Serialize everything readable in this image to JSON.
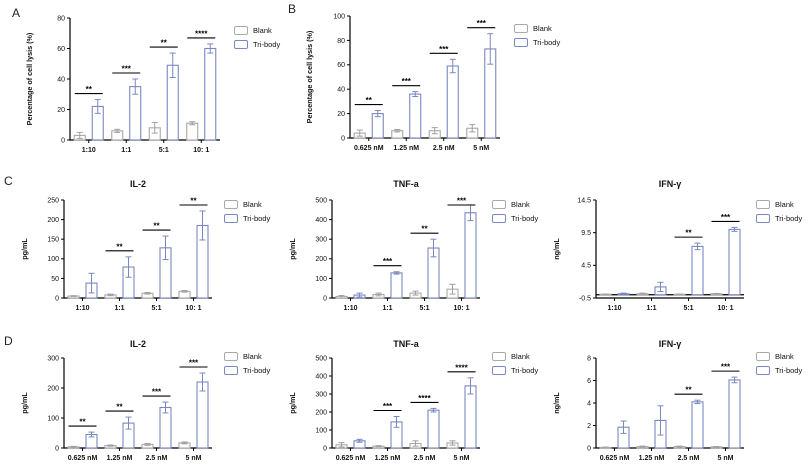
{
  "figure": {
    "panels": [
      {
        "letter": "A"
      },
      {
        "letter": "B"
      },
      {
        "letter": "C"
      },
      {
        "letter": "D"
      }
    ]
  },
  "legend": {
    "items": [
      "Blank",
      "Tri-body"
    ]
  },
  "colors": {
    "blank_border": "#a9aaae",
    "blank_fill": "#fdfdfc",
    "blank_error": "#9fa0a4",
    "tribody_border": "#7a88c0",
    "tribody_fill": "#ffffff",
    "axis": "#000000",
    "significance": "#000000"
  },
  "chart_data": [
    {
      "type": "bar",
      "panel": "A",
      "title": "",
      "ylabel": "Percentage of cell lysis (%)",
      "categories": [
        "1:10",
        "1:1",
        "5:1",
        "10: 1"
      ],
      "series": [
        {
          "name": "Blank",
          "values": [
            3,
            6,
            8,
            11
          ],
          "errors": [
            2,
            1,
            3.5,
            1
          ]
        },
        {
          "name": "Tri-body",
          "values": [
            22,
            35,
            49,
            60
          ],
          "errors": [
            4.5,
            5,
            8,
            3
          ]
        }
      ],
      "significance": [
        "**",
        "***",
        "**",
        "****"
      ],
      "ylim": [
        0,
        80
      ],
      "yticks": [
        0,
        20,
        40,
        60,
        80
      ]
    },
    {
      "type": "bar",
      "panel": "B",
      "title": "",
      "ylabel": "Percentage of cell lysis (%)",
      "categories": [
        "0.625 nM",
        "1.25 nM",
        "2.5 nM",
        "5 nM"
      ],
      "series": [
        {
          "name": "Blank",
          "values": [
            4,
            6,
            6,
            8
          ],
          "errors": [
            2.5,
            1,
            2.5,
            3
          ]
        },
        {
          "name": "Tri-body",
          "values": [
            20,
            36,
            59,
            73
          ],
          "errors": [
            2.5,
            2,
            5.5,
            12.5
          ]
        }
      ],
      "significance": [
        "**",
        "***",
        "***",
        "***"
      ],
      "ylim": [
        0,
        100
      ],
      "yticks": [
        0,
        20,
        40,
        60,
        80,
        100
      ]
    },
    {
      "type": "bar",
      "panel": "C",
      "title": "IL-2",
      "ylabel": "pg/mL",
      "categories": [
        "1:10",
        "1:1",
        "5:1",
        "10: 1"
      ],
      "series": [
        {
          "name": "Blank",
          "values": [
            5,
            8,
            12,
            17
          ],
          "errors": [
            1,
            2,
            2,
            2
          ]
        },
        {
          "name": "Tri-body",
          "values": [
            38,
            79,
            128,
            185
          ],
          "errors": [
            25,
            26,
            30,
            37
          ]
        }
      ],
      "significance": [
        null,
        "**",
        "**",
        "**"
      ],
      "ylim": [
        0,
        250
      ],
      "yticks": [
        0,
        50,
        100,
        150,
        200,
        250
      ]
    },
    {
      "type": "bar",
      "panel": "C",
      "title": "TNF-a",
      "ylabel": "pg/mL",
      "categories": [
        "1:10",
        "1:1",
        "5:1",
        "10: 1"
      ],
      "series": [
        {
          "name": "Blank",
          "values": [
            8,
            18,
            25,
            45
          ],
          "errors": [
            5,
            7,
            10,
            25
          ]
        },
        {
          "name": "Tri-body",
          "values": [
            15,
            128,
            255,
            435
          ],
          "errors": [
            10,
            6,
            45,
            40
          ]
        }
      ],
      "significance": [
        null,
        "***",
        "**",
        "***"
      ],
      "ylim": [
        0,
        500
      ],
      "yticks": [
        0,
        100,
        200,
        300,
        400,
        500
      ]
    },
    {
      "type": "bar",
      "panel": "C",
      "title": "IFN-γ",
      "ylabel": "ng/mL",
      "categories": [
        "1:10",
        "1:1",
        "5:1",
        "10: 1"
      ],
      "series": [
        {
          "name": "Blank",
          "values": [
            0.05,
            0.15,
            0.05,
            0.15
          ],
          "errors": [
            0.05,
            0.1,
            0.05,
            0.05
          ]
        },
        {
          "name": "Tri-body",
          "values": [
            0.15,
            1.2,
            7.4,
            10
          ],
          "errors": [
            0.1,
            0.7,
            0.5,
            0.3
          ]
        }
      ],
      "significance": [
        null,
        null,
        "**",
        "***"
      ],
      "ylim": [
        -0.5,
        14.5
      ],
      "yticks": [
        -0.5,
        4.5,
        9.5,
        14.5
      ],
      "baseline": 0
    },
    {
      "type": "bar",
      "panel": "D",
      "title": "IL-2",
      "ylabel": "pg/mL",
      "categories": [
        "0.625 nM",
        "1.25 nM",
        "2.5 nM",
        "5 nM"
      ],
      "series": [
        {
          "name": "Blank",
          "values": [
            4,
            8,
            12,
            17
          ],
          "errors": [
            1.5,
            2,
            3,
            3
          ]
        },
        {
          "name": "Tri-body",
          "values": [
            45,
            83,
            135,
            220
          ],
          "errors": [
            8,
            20,
            18,
            30
          ]
        }
      ],
      "significance": [
        "**",
        "**",
        "***",
        "***"
      ],
      "ylim": [
        0,
        300
      ],
      "yticks": [
        0,
        100,
        200,
        300
      ]
    },
    {
      "type": "bar",
      "panel": "D",
      "title": "TNF-a",
      "ylabel": "pg/mL",
      "categories": [
        "0.625 nM",
        "1.25 nM",
        "2.5 nM",
        "5 nM"
      ],
      "series": [
        {
          "name": "Blank",
          "values": [
            18,
            10,
            25,
            28
          ],
          "errors": [
            12,
            3,
            15,
            12
          ]
        },
        {
          "name": "Tri-body",
          "values": [
            40,
            145,
            210,
            345
          ],
          "errors": [
            8,
            30,
            10,
            45
          ]
        }
      ],
      "significance": [
        null,
        "***",
        "****",
        "****"
      ],
      "ylim": [
        0,
        500
      ],
      "yticks": [
        0,
        100,
        200,
        300,
        400,
        500
      ]
    },
    {
      "type": "bar",
      "panel": "D",
      "title": "IFN-γ",
      "ylabel": "ng/mL",
      "categories": [
        "0.625 nM",
        "1.25 nM",
        "2.5 nM",
        "5 nM"
      ],
      "series": [
        {
          "name": "Blank",
          "values": [
            0.05,
            0.12,
            0.12,
            0.1
          ],
          "errors": [
            0.03,
            0.05,
            0.05,
            0.03
          ]
        },
        {
          "name": "Tri-body",
          "values": [
            1.85,
            2.45,
            4.1,
            6.05
          ],
          "errors": [
            0.55,
            1.3,
            0.15,
            0.25
          ]
        }
      ],
      "significance": [
        null,
        null,
        "**",
        "***"
      ],
      "ylim": [
        0,
        8
      ],
      "yticks": [
        0,
        2,
        4,
        6,
        8
      ]
    }
  ]
}
